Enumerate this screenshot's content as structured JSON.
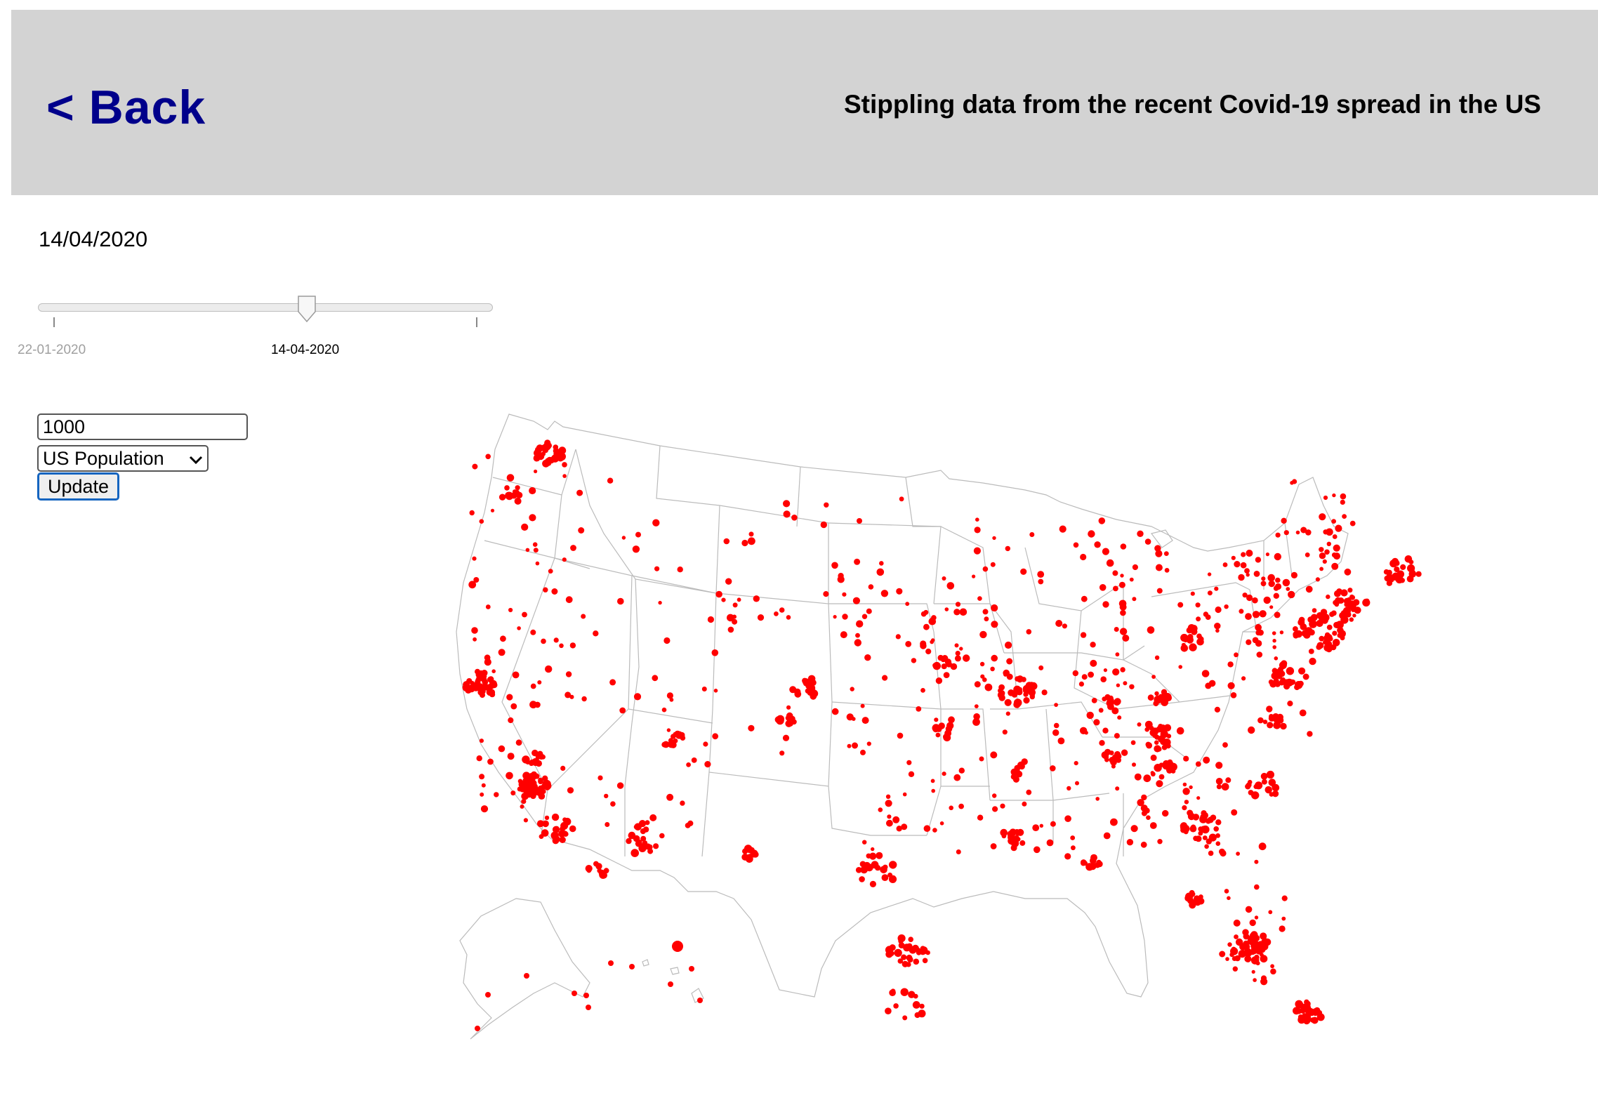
{
  "header": {
    "back_label": "< Back",
    "title": "Stippling data from the recent Covid-19 spread in the US"
  },
  "date_display": "14/04/2020",
  "slider": {
    "start_label": "22-01-2020",
    "current_label": "14-04-2020",
    "position": 0.6
  },
  "controls": {
    "count_value": "1000",
    "dataset_selected": "US Population",
    "update_label": "Update"
  },
  "map": {
    "dot_color": "#ff0000",
    "border_color": "#bbbbbb"
  }
}
